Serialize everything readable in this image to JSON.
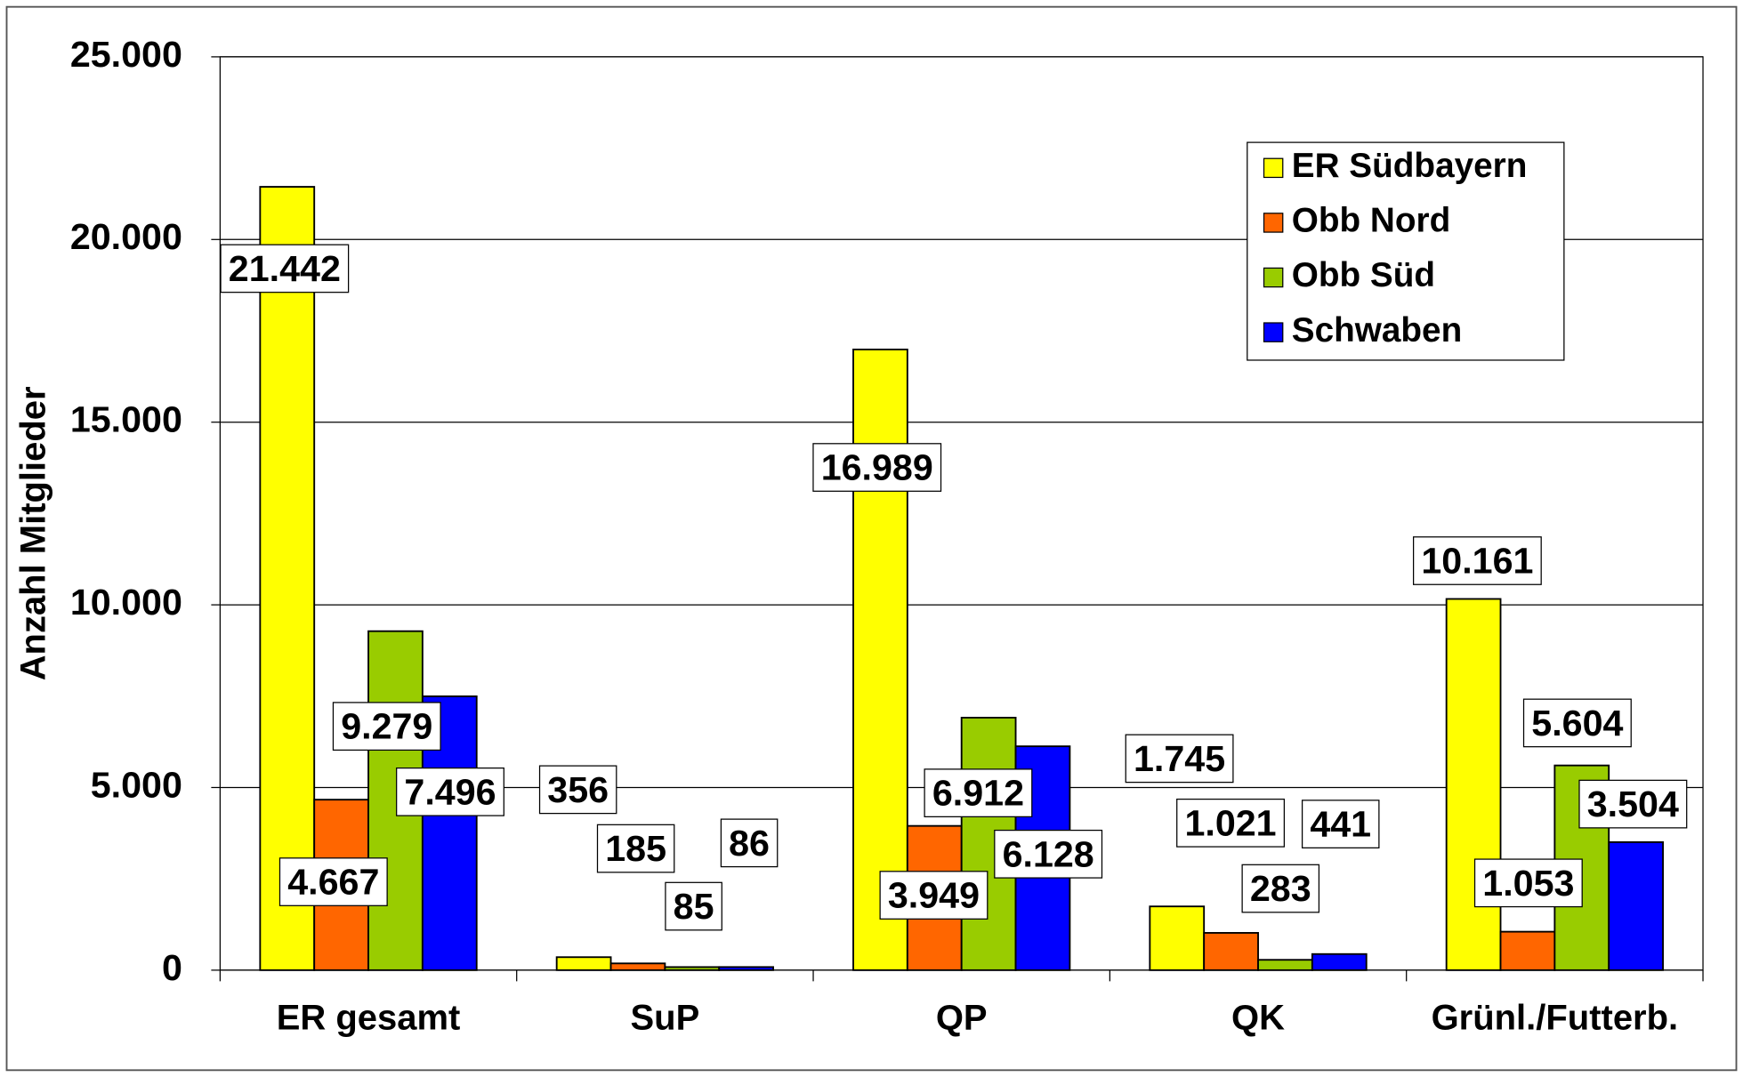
{
  "chart_data": {
    "type": "bar",
    "y_label": "Anzahl Mitglieder",
    "categories": [
      "ER gesamt",
      "SuP",
      "QP",
      "QK",
      "Grünl./Futterb."
    ],
    "series": [
      {
        "name": "ER Südbayern",
        "color": "#ffff00",
        "values": [
          21442,
          356,
          16989,
          1745,
          10161
        ],
        "value_labels": [
          "21.442",
          "356",
          "16.989",
          "1.745",
          "10.161"
        ]
      },
      {
        "name": "Obb Nord",
        "color": "#ff6600",
        "values": [
          4667,
          185,
          3949,
          1021,
          1053
        ],
        "value_labels": [
          "4.667",
          "185",
          "3.949",
          "1.021",
          "1.053"
        ]
      },
      {
        "name": "Obb Süd",
        "color": "#99cc00",
        "values": [
          9279,
          85,
          6912,
          283,
          5604
        ],
        "value_labels": [
          "9.279",
          "85",
          "6.912",
          "283",
          "5.604"
        ]
      },
      {
        "name": "Schwaben",
        "color": "#0000ff",
        "values": [
          7496,
          86,
          6128,
          441,
          3504
        ],
        "value_labels": [
          "7.496",
          "86",
          "6.128",
          "441",
          "3.504"
        ]
      }
    ],
    "ylim": [
      0,
      25000
    ],
    "yticks": [
      0,
      {
        "value": 5000,
        "label": "5.000"
      },
      {
        "value": 10000,
        "label": "10.000"
      },
      {
        "value": 15000,
        "label": "15.000"
      },
      {
        "value": 20000,
        "label": "20.000"
      },
      {
        "value": 25000,
        "label": "25.000"
      }
    ],
    "grid": true,
    "legend": "upper right"
  }
}
